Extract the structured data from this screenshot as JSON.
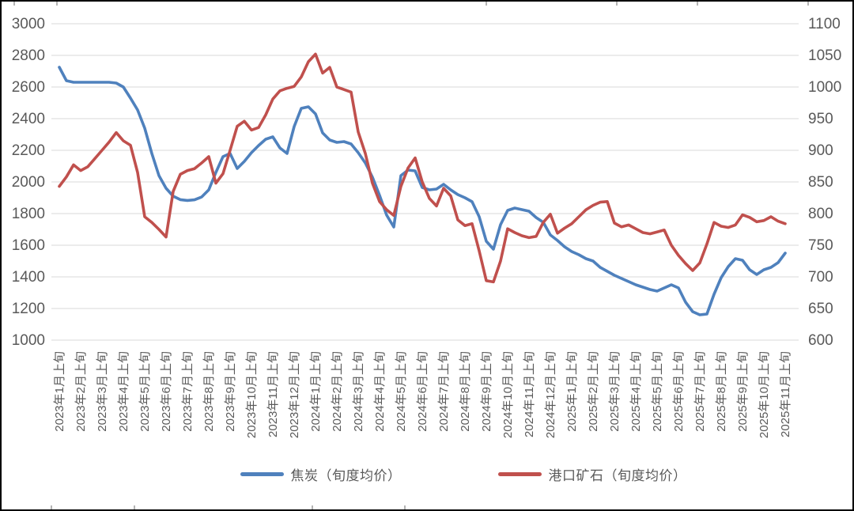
{
  "chart_data": {
    "type": "line",
    "title": "",
    "grid": "horizontal",
    "legend_position": "bottom",
    "x_unit": "旬 (10-day period), 3 points per month, labels shown monthly",
    "x_tick_labels": [
      "2023年1月上旬",
      "2023年2月上旬",
      "2023年3月上旬",
      "2023年4月上旬",
      "2023年5月上旬",
      "2023年6月上旬",
      "2023年7月上旬",
      "2023年8月上旬",
      "2023年9月上旬",
      "2023年10月上旬",
      "2023年11月上旬",
      "2023年12月上旬",
      "2024年1月上旬",
      "2024年2月上旬",
      "2024年3月上旬",
      "2024年4月上旬",
      "2024年5月上旬",
      "2024年6月上旬",
      "2024年7月上旬",
      "2024年8月上旬",
      "2024年9月上旬",
      "2024年10月上旬",
      "2024年11月上旬",
      "2024年12月上旬",
      "2025年1月上旬",
      "2025年2月上旬",
      "2025年3月上旬",
      "2025年4月上旬",
      "2025年5月上旬",
      "2025年6月上旬",
      "2025年7月上旬",
      "2025年8月上旬",
      "2025年9月上旬",
      "2025年10月上旬",
      "2025年11月上旬"
    ],
    "left_axis": {
      "min": 1000,
      "max": 3000,
      "step": 200,
      "ticks": [
        3000,
        2800,
        2600,
        2400,
        2200,
        2000,
        1800,
        1600,
        1400,
        1200,
        1000
      ]
    },
    "right_axis": {
      "min": 600,
      "max": 1100,
      "step": 50,
      "ticks": [
        1100,
        1050,
        1000,
        950,
        900,
        850,
        800,
        750,
        700,
        650,
        600
      ]
    },
    "series": [
      {
        "name": "焦炭（旬度均价）",
        "axis": "left",
        "color": "#4F81BD",
        "values": [
          2725,
          2640,
          2630,
          2630,
          2630,
          2630,
          2630,
          2630,
          2625,
          2600,
          2530,
          2455,
          2340,
          2180,
          2040,
          1960,
          1910,
          1888,
          1883,
          1887,
          1905,
          1950,
          2060,
          2160,
          2180,
          2085,
          2130,
          2185,
          2230,
          2270,
          2285,
          2215,
          2180,
          2350,
          2465,
          2475,
          2430,
          2310,
          2265,
          2250,
          2255,
          2240,
          2185,
          2120,
          2030,
          1915,
          1790,
          1715,
          2040,
          2075,
          2070,
          1965,
          1950,
          1955,
          1985,
          1950,
          1920,
          1900,
          1875,
          1780,
          1625,
          1575,
          1730,
          1820,
          1835,
          1825,
          1815,
          1775,
          1745,
          1665,
          1630,
          1590,
          1560,
          1540,
          1515,
          1500,
          1460,
          1435,
          1410,
          1390,
          1370,
          1350,
          1335,
          1320,
          1310,
          1330,
          1350,
          1330,
          1240,
          1180,
          1160,
          1165,
          1290,
          1395,
          1465,
          1515,
          1505,
          1445,
          1415,
          1445,
          1460,
          1490,
          1550
        ]
      },
      {
        "name": "港口矿石（旬度均价）",
        "axis": "right",
        "color": "#C0504D",
        "values": [
          843,
          858,
          877,
          868,
          874,
          887,
          900,
          913,
          928,
          915,
          908,
          865,
          795,
          786,
          775,
          763,
          835,
          862,
          868,
          871,
          880,
          890,
          848,
          863,
          900,
          938,
          946,
          932,
          936,
          956,
          981,
          994,
          998,
          1001,
          1016,
          1040,
          1052,
          1022,
          1031,
          1000,
          996,
          992,
          929,
          895,
          848,
          819,
          806,
          797,
          843,
          872,
          888,
          850,
          824,
          812,
          840,
          828,
          790,
          781,
          784,
          741,
          694,
          692,
          725,
          776,
          770,
          765,
          762,
          764,
          786,
          799,
          769,
          777,
          784,
          795,
          806,
          813,
          818,
          819,
          785,
          779,
          782,
          776,
          770,
          768,
          771,
          774,
          750,
          734,
          721,
          710,
          722,
          752,
          786,
          780,
          778,
          782,
          798,
          794,
          787,
          789,
          795,
          788,
          784
        ]
      }
    ]
  },
  "colors": {
    "gridline": "#D9D9D9",
    "axis_text": "#595959",
    "frame": "#000000",
    "background": "#FFFFFF",
    "series_coke": "#4F81BD",
    "series_ore": "#C0504D"
  },
  "legend": {
    "coke_label": "焦炭（旬度均价）",
    "ore_label": "港口矿石（旬度均价）"
  }
}
